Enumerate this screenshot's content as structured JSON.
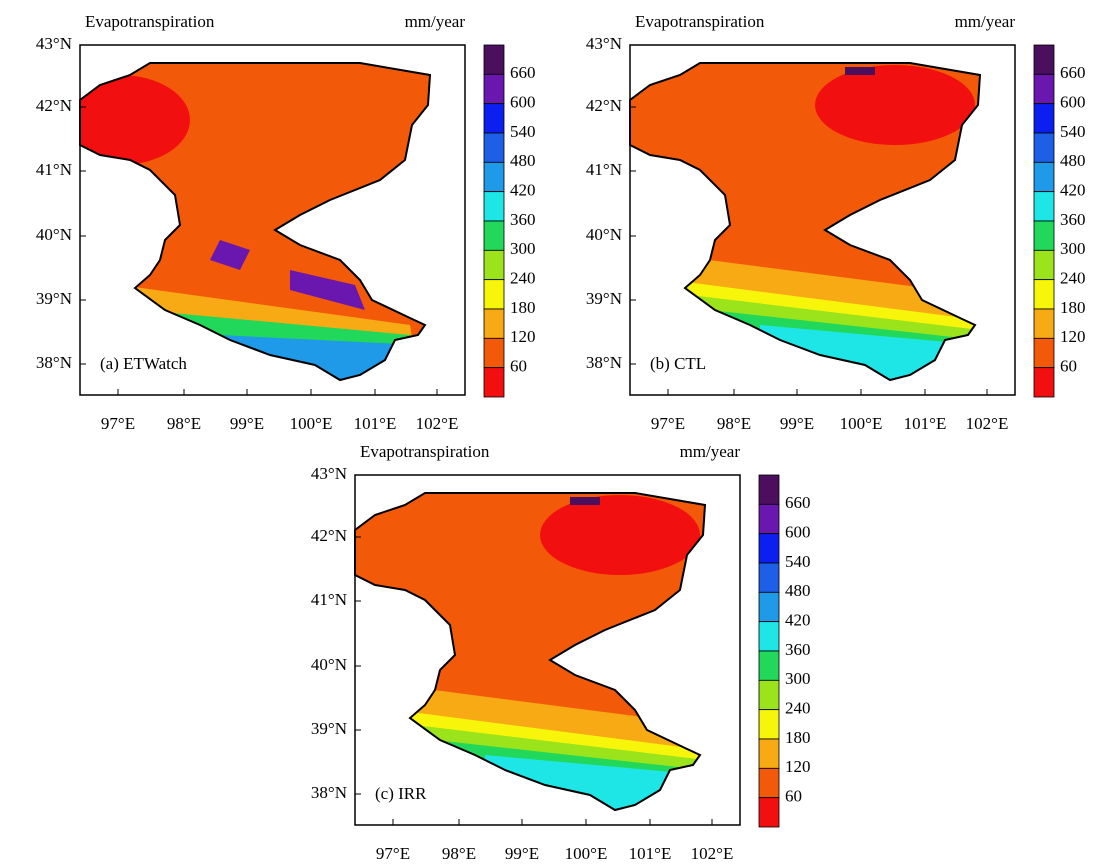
{
  "colors": [
    "#4b0f5e",
    "#6a17b0",
    "#0a1ff0",
    "#1d5fe6",
    "#1e9ae8",
    "#1fe6e6",
    "#22d85a",
    "#9be31a",
    "#f7f50a",
    "#f7aa14",
    "#f25a0a",
    "#f20f0f"
  ],
  "panels": [
    {
      "title": "Evapotranspiration",
      "units": "mm/year",
      "label": "(a) ETWatch",
      "lat_labels": [
        "43°N",
        "42°N",
        "41°N",
        "40°N",
        "39°N",
        "38°N"
      ],
      "lon_labels": [
        "97°E",
        "98°E",
        "99°E",
        "100°E",
        "101°E",
        "102°E"
      ],
      "colorbar_labels": [
        660,
        600,
        540,
        480,
        420,
        360,
        300,
        240,
        180,
        120,
        60
      ]
    },
    {
      "title": "Evapotranspiration",
      "units": "mm/year",
      "label": "(b) CTL",
      "lat_labels": [
        "43°N",
        "42°N",
        "41°N",
        "40°N",
        "39°N",
        "38°N"
      ],
      "lon_labels": [
        "97°E",
        "98°E",
        "99°E",
        "100°E",
        "101°E",
        "102°E"
      ],
      "colorbar_labels": [
        660,
        600,
        540,
        480,
        420,
        360,
        300,
        240,
        180,
        120,
        60
      ]
    },
    {
      "title": "Evapotranspiration",
      "units": "mm/year",
      "label": "(c) IRR",
      "lat_labels": [
        "43°N",
        "42°N",
        "41°N",
        "40°N",
        "39°N",
        "38°N"
      ],
      "lon_labels": [
        "97°E",
        "98°E",
        "99°E",
        "100°E",
        "101°E",
        "102°E"
      ],
      "colorbar_labels": [
        660,
        600,
        540,
        480,
        420,
        360,
        300,
        240,
        180,
        120,
        60
      ]
    }
  ]
}
